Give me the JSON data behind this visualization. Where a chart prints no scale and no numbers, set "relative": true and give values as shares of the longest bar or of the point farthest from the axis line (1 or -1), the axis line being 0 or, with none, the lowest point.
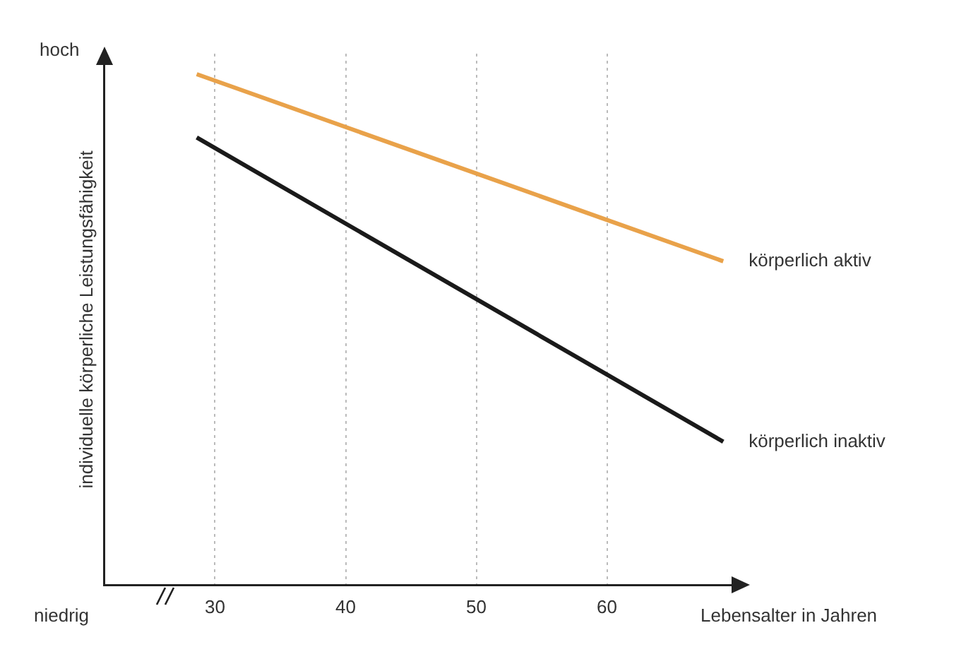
{
  "chart_data": {
    "type": "line",
    "relative": true,
    "xlabel": "Lebensalter in Jahren",
    "ylabel": "individuelle körperliche Leistungsfähigkeit",
    "annotations": [
      "hoch",
      "niedrig"
    ],
    "x": [
      28.6,
      68.9
    ],
    "xlim": [
      21.5,
      70.4
    ],
    "xticks": [
      30,
      40,
      50,
      60
    ],
    "grid": "x",
    "legend": false,
    "marker": "none",
    "line_style": "solid",
    "series": [
      {
        "name": "körperlich aktiv",
        "color": "#e9a24a",
        "values": [
          1,
          0.634
        ]
      },
      {
        "name": "körperlich inaktiv",
        "color": "#1a1a1a",
        "values": [
          0.876,
          0.281
        ]
      }
    ]
  }
}
